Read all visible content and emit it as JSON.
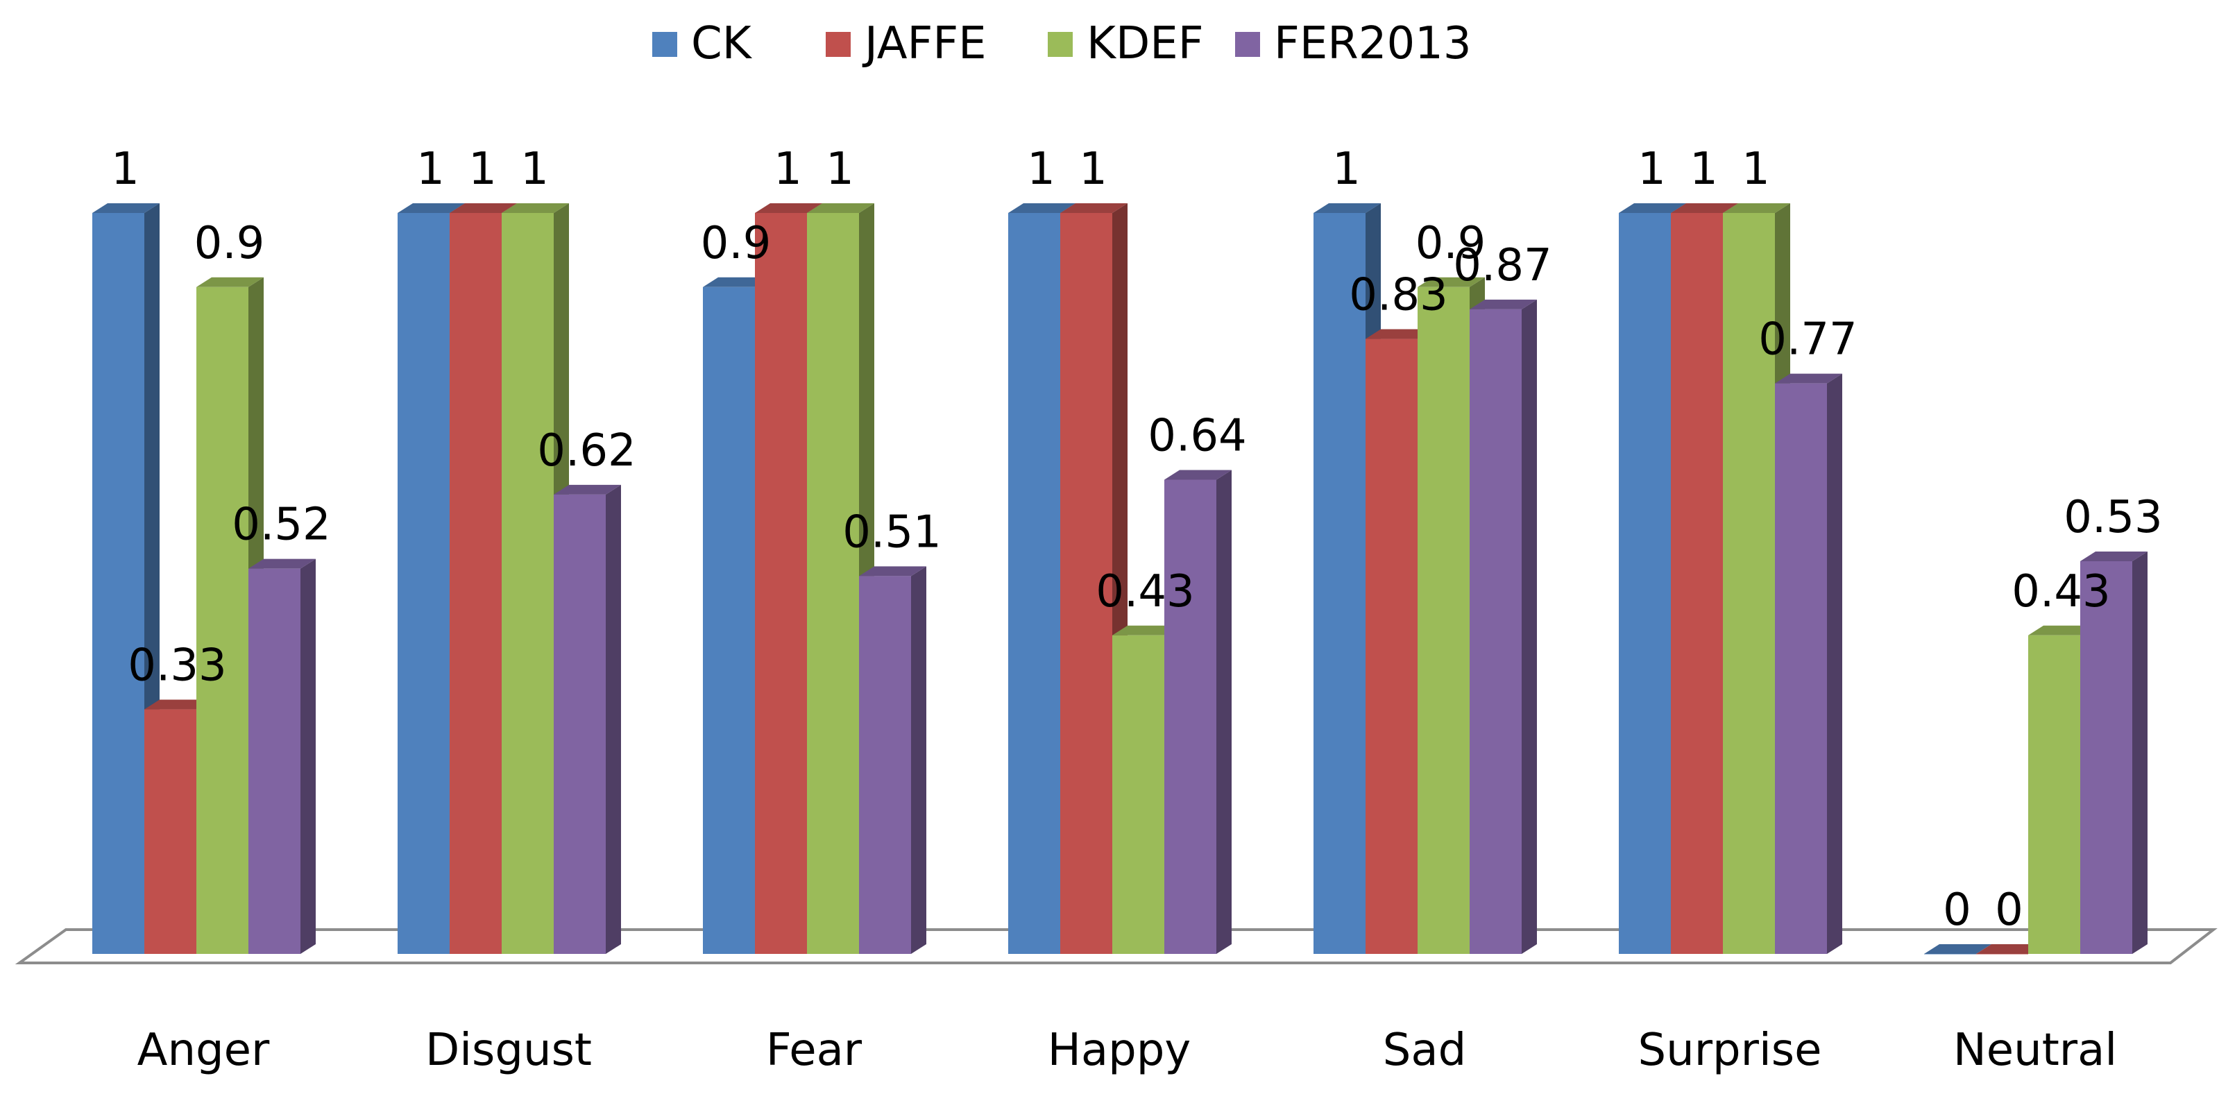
{
  "chart_data": {
    "type": "bar",
    "style": "3d-clustered-column",
    "title": "",
    "xlabel": "",
    "ylabel": "",
    "ylim": [
      0,
      1
    ],
    "grid": false,
    "legend_position": "top-center",
    "categories": [
      "Anger",
      "Disgust",
      "Fear",
      "Happy",
      "Sad",
      "Surprise",
      "Neutral"
    ],
    "series": [
      {
        "name": "CK",
        "color": "#4F81BD",
        "values": [
          1,
          1,
          0.9,
          1,
          1,
          1,
          0
        ],
        "labels": [
          "1",
          "1",
          "0.9",
          "1",
          "1",
          "1",
          "0"
        ]
      },
      {
        "name": "JAFFE",
        "color": "#C0504D",
        "values": [
          0.33,
          1,
          1,
          1,
          0.83,
          1,
          0
        ],
        "labels": [
          "0.33",
          "1",
          "1",
          "1",
          "0.83",
          "1",
          "0"
        ]
      },
      {
        "name": "KDEF",
        "color": "#9BBB59",
        "values": [
          0.9,
          1,
          1,
          0.43,
          0.9,
          1,
          0.43
        ],
        "labels": [
          "0.9",
          "1",
          "1",
          "0.43",
          "0.9",
          "1",
          "0.43"
        ]
      },
      {
        "name": "FER2013",
        "color": "#8064A2",
        "values": [
          0.52,
          0.62,
          0.51,
          0.64,
          0.87,
          0.77,
          0.53
        ],
        "labels": [
          "0.52",
          "0.62",
          "0.51",
          "0.64",
          "0.87",
          "0.77",
          "0.53"
        ]
      }
    ]
  }
}
